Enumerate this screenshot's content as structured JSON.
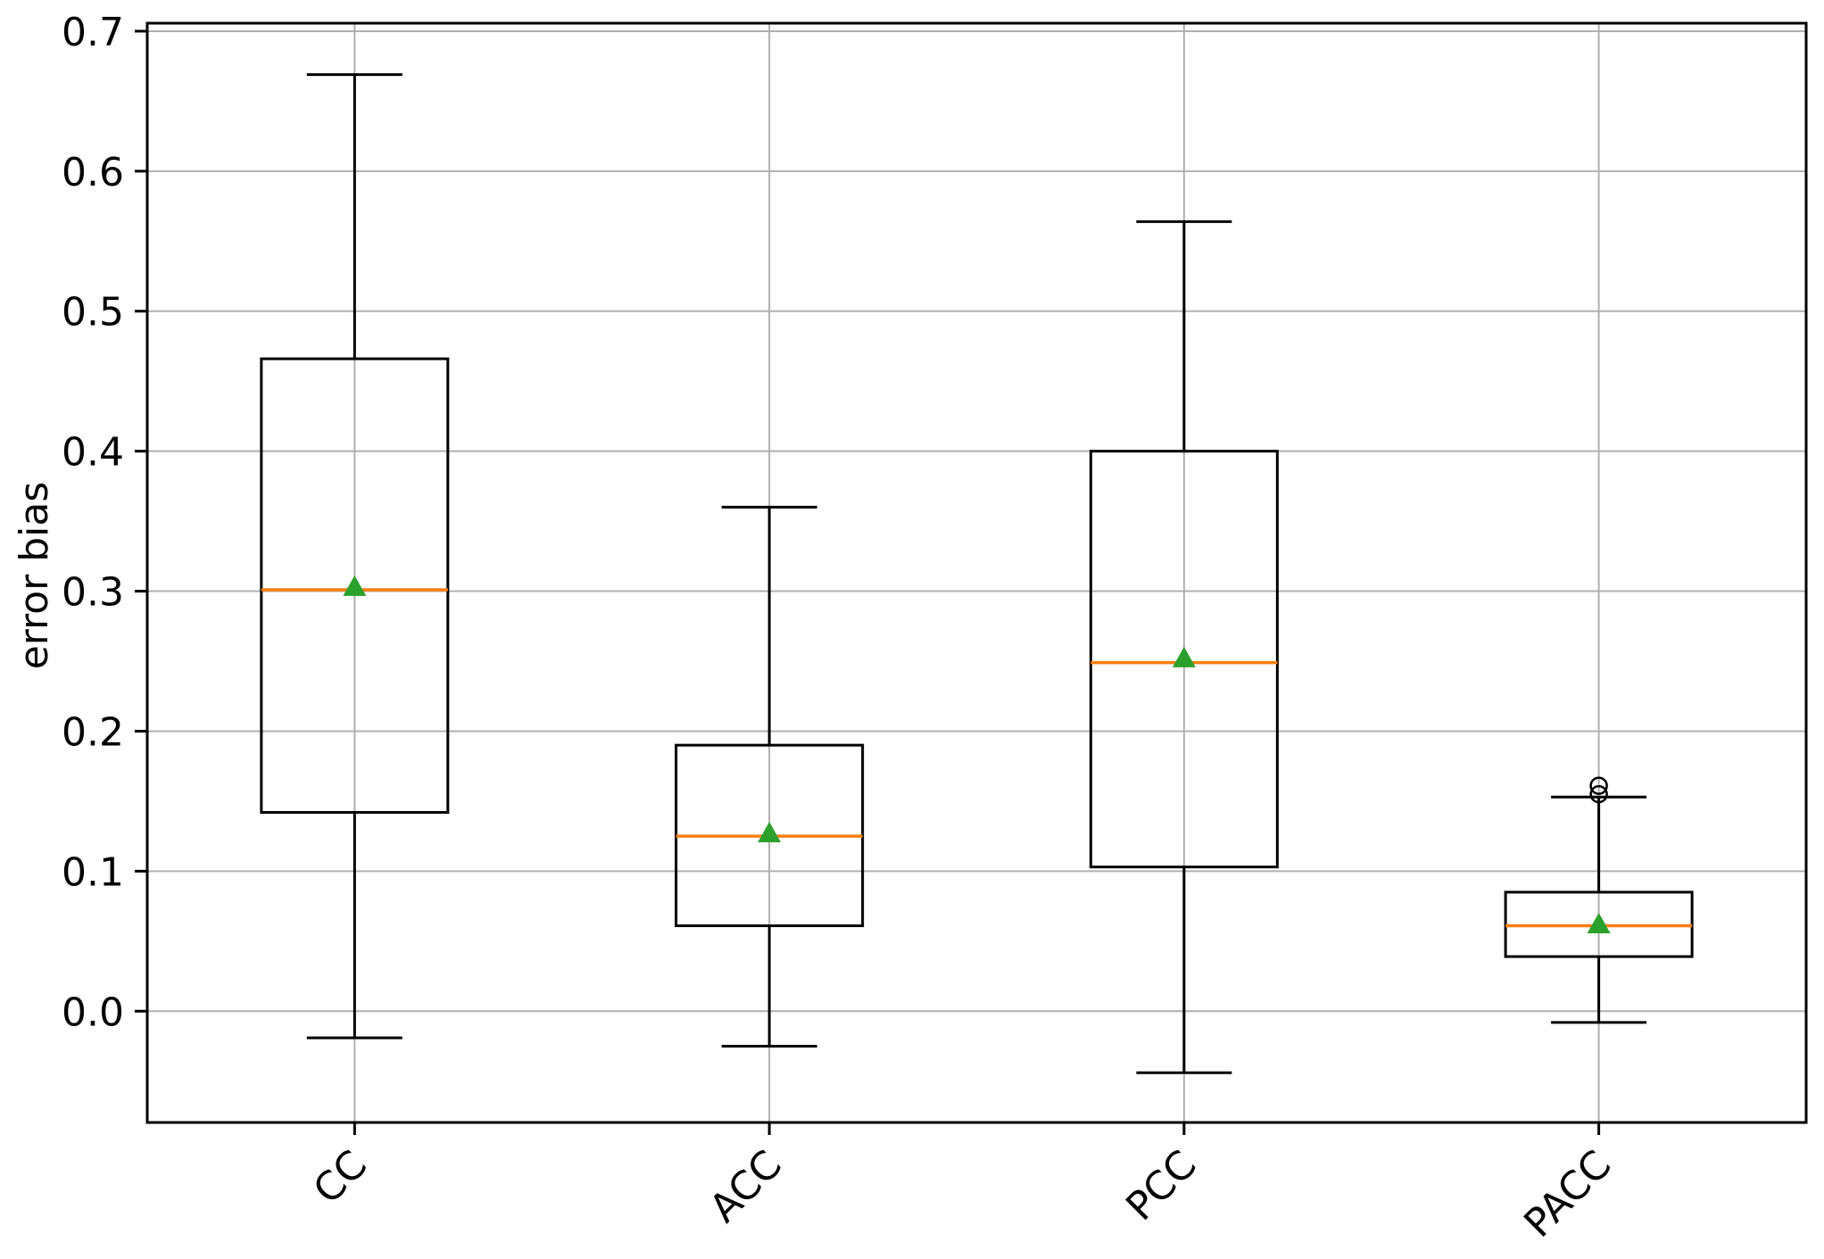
{
  "chart_data": {
    "type": "box",
    "title": "",
    "xlabel": "",
    "ylabel": "error bias",
    "categories": [
      "CC",
      "ACC",
      "PCC",
      "PACC"
    ],
    "ytick_labels": [
      "0.0",
      "0.1",
      "0.2",
      "0.3",
      "0.4",
      "0.5",
      "0.6",
      "0.7"
    ],
    "ytick_values": [
      0.0,
      0.1,
      0.2,
      0.3,
      0.4,
      0.5,
      0.6,
      0.7
    ],
    "ylim": [
      -0.0795,
      0.7057
    ],
    "grid": "both",
    "legend": "none",
    "boxes": [
      {
        "label": "CC",
        "whisker_low": -0.019,
        "q1": 0.142,
        "median": 0.301,
        "q3": 0.466,
        "whisker_high": 0.669,
        "mean": 0.303,
        "outliers": []
      },
      {
        "label": "ACC",
        "whisker_low": -0.025,
        "q1": 0.061,
        "median": 0.125,
        "q3": 0.19,
        "whisker_high": 0.36,
        "mean": 0.127,
        "outliers": []
      },
      {
        "label": "PCC",
        "whisker_low": -0.044,
        "q1": 0.103,
        "median": 0.249,
        "q3": 0.4,
        "whisker_high": 0.564,
        "mean": 0.252,
        "outliers": []
      },
      {
        "label": "PACC",
        "whisker_low": -0.008,
        "q1": 0.039,
        "median": 0.061,
        "q3": 0.085,
        "whisker_high": 0.153,
        "mean": 0.062,
        "outliers": [
          0.155,
          0.161
        ]
      }
    ],
    "colors": {
      "median": "#ff7f0e",
      "mean": "#2ca02c",
      "box_edge": "#000000",
      "grid": "#b0b0b0",
      "background": "#ffffff"
    }
  }
}
